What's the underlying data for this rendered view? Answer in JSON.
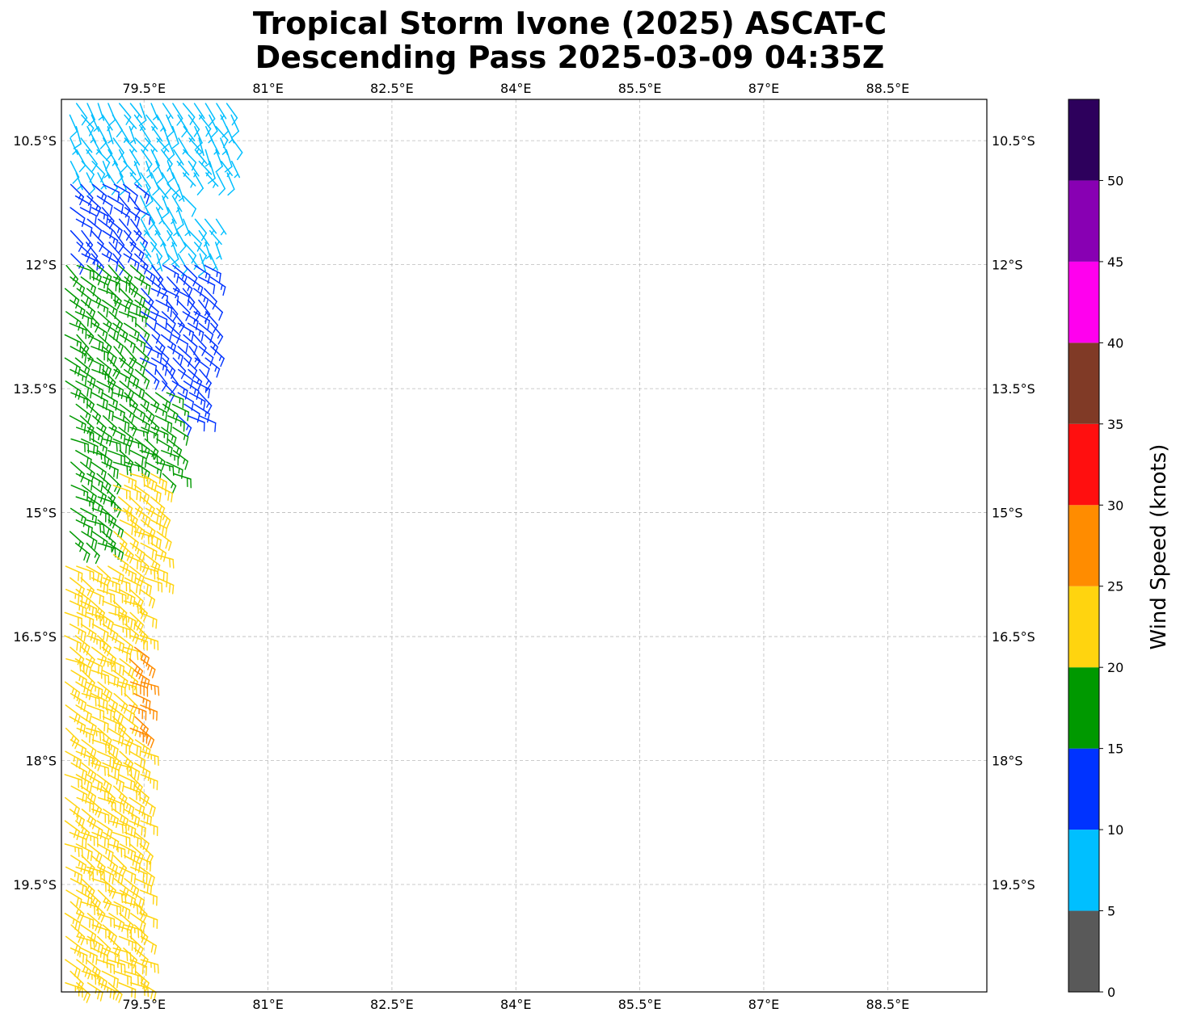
{
  "title": {
    "line1": "Tropical Storm Ivone (2025) ASCAT-C",
    "line2": "Descending Pass 2025-03-09 04:35Z"
  },
  "map": {
    "projection": "PlateCarree",
    "lon_range": [
      78.5,
      89.7
    ],
    "lat_range": [
      -20.8,
      -10.0
    ],
    "lon_ticks": [
      79.5,
      81.0,
      82.5,
      84.0,
      85.5,
      87.0,
      88.5
    ],
    "lon_tick_labels": [
      "79.5°E",
      "81°E",
      "82.5°E",
      "84°E",
      "85.5°E",
      "87°E",
      "88.5°E"
    ],
    "lat_ticks": [
      -10.5,
      -12.0,
      -13.5,
      -15.0,
      -16.5,
      -18.0,
      -19.5
    ],
    "lat_tick_labels": [
      "10.5°S",
      "12°S",
      "13.5°S",
      "15°S",
      "16.5°S",
      "18°S",
      "19.5°S"
    ],
    "gridlines": true,
    "gridline_style": "dashed"
  },
  "colorbar": {
    "label": "Wind Speed (knots)",
    "ticks": [
      0,
      5,
      10,
      15,
      20,
      25,
      30,
      35,
      40,
      45,
      50
    ],
    "bins": [
      {
        "min": 0,
        "max": 5,
        "color": "#595959"
      },
      {
        "min": 5,
        "max": 10,
        "color": "#00bfff"
      },
      {
        "min": 10,
        "max": 15,
        "color": "#0033ff"
      },
      {
        "min": 15,
        "max": 20,
        "color": "#009900"
      },
      {
        "min": 20,
        "max": 25,
        "color": "#ffd40f"
      },
      {
        "min": 25,
        "max": 30,
        "color": "#ff8c00"
      },
      {
        "min": 30,
        "max": 35,
        "color": "#ff0f0f"
      },
      {
        "min": 35,
        "max": 40,
        "color": "#803a26"
      },
      {
        "min": 40,
        "max": 45,
        "color": "#ff00ee"
      },
      {
        "min": 45,
        "max": 50,
        "color": "#8800b3"
      },
      {
        "min": 50,
        "max": 55,
        "color": "#2d005c"
      }
    ]
  },
  "chart_data": {
    "type": "wind-barbs",
    "units": "knots",
    "wind_regions": [
      {
        "lat_range": [
          -10.4,
          -10.0
        ],
        "lon_range": [
          78.7,
          79.6
        ],
        "speed_kt": [
          3,
          5
        ],
        "dir_from_deg": 120
      },
      {
        "lat_range": [
          -11.0,
          -10.0
        ],
        "lon_range": [
          78.6,
          80.6
        ],
        "speed_kt": [
          6,
          9
        ],
        "dir_from_deg": 150
      },
      {
        "lat_range": [
          -11.9,
          -10.9
        ],
        "lon_range": [
          79.3,
          80.0
        ],
        "speed_kt": [
          6,
          9
        ],
        "dir_from_deg": 150
      },
      {
        "lat_range": [
          -12.0,
          -11.4
        ],
        "lon_range": [
          79.9,
          80.4
        ],
        "speed_kt": [
          6,
          9
        ],
        "dir_from_deg": 150
      },
      {
        "lat_range": [
          -11.9,
          -11.0
        ],
        "lon_range": [
          78.6,
          79.4
        ],
        "speed_kt": [
          11,
          14
        ],
        "dir_from_deg": 130
      },
      {
        "lat_range": [
          -13.4,
          -11.9
        ],
        "lon_range": [
          79.4,
          80.3
        ],
        "speed_kt": [
          11,
          14
        ],
        "dir_from_deg": 130
      },
      {
        "lat_range": [
          -13.9,
          -13.4
        ],
        "lon_range": [
          79.6,
          80.2
        ],
        "speed_kt": [
          11,
          14
        ],
        "dir_from_deg": 125
      },
      {
        "lat_range": [
          -13.5,
          -12.0
        ],
        "lon_range": [
          78.5,
          79.4
        ],
        "speed_kt": [
          15,
          19
        ],
        "dir_from_deg": 125
      },
      {
        "lat_range": [
          -14.6,
          -13.5
        ],
        "lon_range": [
          78.6,
          79.9
        ],
        "speed_kt": [
          15,
          19
        ],
        "dir_from_deg": 120
      },
      {
        "lat_range": [
          -15.5,
          -14.6
        ],
        "lon_range": [
          78.6,
          79.1
        ],
        "speed_kt": [
          15,
          19
        ],
        "dir_from_deg": 120
      },
      {
        "lat_range": [
          -15.8,
          -14.5
        ],
        "lon_range": [
          79.1,
          79.7
        ],
        "speed_kt": [
          20,
          24
        ],
        "dir_from_deg": 120
      },
      {
        "lat_range": [
          -20.8,
          -15.6
        ],
        "lon_range": [
          78.5,
          79.5
        ],
        "speed_kt": [
          20,
          24
        ],
        "dir_from_deg": 120
      },
      {
        "lat_range": [
          -17.7,
          -16.6
        ],
        "lon_range": [
          79.3,
          79.5
        ],
        "speed_kt": [
          25,
          28
        ],
        "dir_from_deg": 120
      }
    ]
  }
}
